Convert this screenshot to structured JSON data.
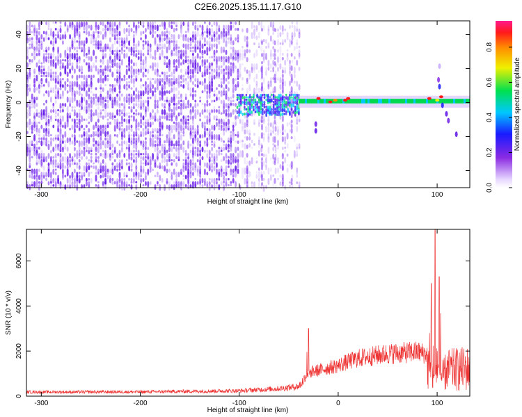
{
  "title": "C2E6.2025.135.11.17.G10",
  "chart_data": [
    {
      "type": "heatmap",
      "xlabel": "Height of straight line (km)",
      "ylabel": "Frequency (Hz)",
      "xlim": [
        -315,
        133
      ],
      "ylim": [
        -50,
        48
      ],
      "xticks": [
        -300,
        -200,
        -100,
        0,
        100
      ],
      "yticks": [
        -40,
        -20,
        0,
        20,
        40
      ],
      "colorbar": {
        "label": "Normalized spectral amplitude",
        "range": [
          0.0,
          0.95
        ],
        "ticks": [
          0.0,
          0.2,
          0.4,
          0.6,
          0.8
        ],
        "colormap": "rainbow (white → violet → blue → cyan → green → yellow → orange → red → magenta)"
      },
      "regions": [
        {
          "x": [
            -315,
            -100
          ],
          "freq": [
            -50,
            48
          ],
          "amplitude": "low, broadband noise (violet)"
        },
        {
          "x": [
            -100,
            -40
          ],
          "freq": [
            -50,
            48
          ],
          "amplitude": "faint broadband noise"
        },
        {
          "x": [
            -100,
            -40
          ],
          "freq": [
            -5,
            5
          ],
          "amplitude": "0.3–0.6 (blue/cyan)"
        },
        {
          "x": [
            -40,
            133
          ],
          "freq": [
            -3,
            4
          ],
          "amplitude": "0.5–0.9 narrow band near 0 Hz"
        }
      ],
      "grid": false
    },
    {
      "type": "line",
      "xlabel": "Height of straight line (km)",
      "ylabel": "SNR (10 * v/v)",
      "xlim": [
        -315,
        133
      ],
      "ylim": [
        0,
        7400
      ],
      "xticks": [
        -300,
        -200,
        -100,
        0,
        100
      ],
      "yticks": [
        0,
        2000,
        4000,
        6000
      ],
      "color": "#ee3333",
      "envelope": [
        {
          "x": -315,
          "y": 250
        },
        {
          "x": -200,
          "y": 260
        },
        {
          "x": -100,
          "y": 330
        },
        {
          "x": -60,
          "y": 460
        },
        {
          "x": -40,
          "y": 600
        },
        {
          "x": -30,
          "y": 1300
        },
        {
          "x": -15,
          "y": 1500
        },
        {
          "x": 0,
          "y": 1700
        },
        {
          "x": 20,
          "y": 2100
        },
        {
          "x": 50,
          "y": 2350
        },
        {
          "x": 80,
          "y": 2450
        },
        {
          "x": 92,
          "y": 2300
        },
        {
          "x": 97,
          "y": 1200
        },
        {
          "x": 100,
          "y": 3000
        },
        {
          "x": 103,
          "y": 1300
        },
        {
          "x": 110,
          "y": 2100
        },
        {
          "x": 133,
          "y": 2250
        }
      ],
      "peaks": [
        {
          "x": 98,
          "y": 7400
        },
        {
          "x": 94,
          "y": 5000
        },
        {
          "x": 102,
          "y": 5300
        },
        {
          "x": -30,
          "y": 3000
        }
      ],
      "grid": false
    }
  ]
}
